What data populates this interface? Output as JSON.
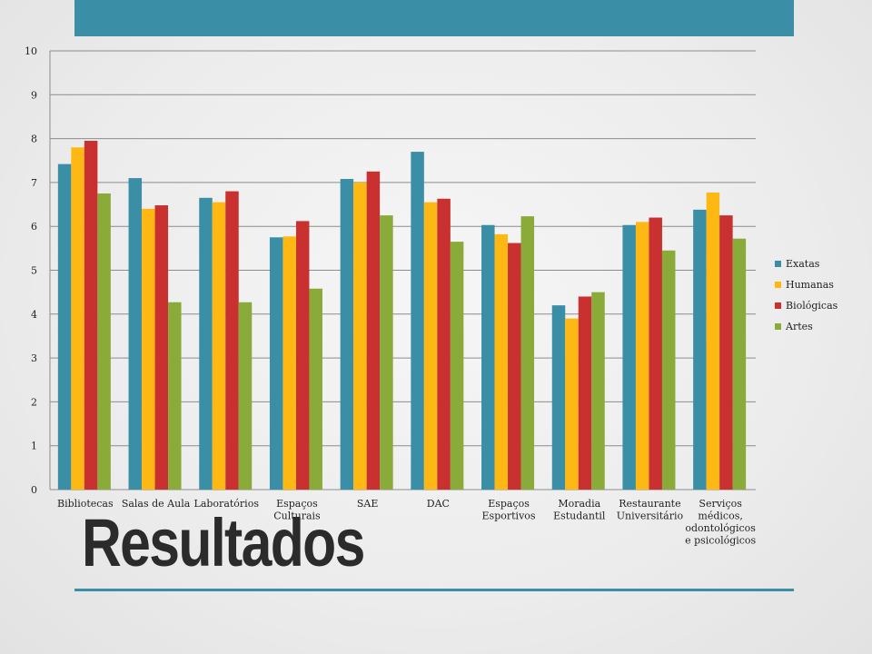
{
  "slide": {
    "title": "Resultados",
    "accent_color": "#3a8fa6"
  },
  "chart_data": {
    "type": "bar",
    "title": "",
    "xlabel": "",
    "ylabel": "",
    "ylim": [
      0,
      10
    ],
    "yticks": [
      "0",
      "1",
      "2",
      "3",
      "4",
      "5",
      "6",
      "7",
      "8",
      "9",
      "10"
    ],
    "grid": true,
    "legend_position": "right",
    "categories": [
      [
        "Bibliotecas"
      ],
      [
        "Salas de Aula"
      ],
      [
        "Laboratórios"
      ],
      [
        "Espaços",
        "Culturais"
      ],
      [
        "SAE"
      ],
      [
        "DAC"
      ],
      [
        "Espaços",
        "Esportivos"
      ],
      [
        "Moradia",
        "Estudantil"
      ],
      [
        "Restaurante",
        "Universitário"
      ],
      [
        "Serviços",
        "médicos,",
        "odontológicos",
        "e psicológicos"
      ]
    ],
    "series": [
      {
        "name": "Exatas",
        "color": "#3a8fa6",
        "values": [
          7.42,
          7.1,
          6.65,
          5.75,
          7.08,
          7.7,
          6.03,
          4.2,
          6.03,
          6.38
        ]
      },
      {
        "name": "Humanas",
        "color": "#fdb813",
        "values": [
          7.8,
          6.4,
          6.55,
          5.77,
          7.0,
          6.55,
          5.82,
          3.9,
          6.1,
          6.77
        ]
      },
      {
        "name": "Biológicas",
        "color": "#c8312f",
        "values": [
          7.95,
          6.48,
          6.8,
          6.12,
          7.25,
          6.63,
          5.62,
          4.4,
          6.2,
          6.25
        ]
      },
      {
        "name": "Artes",
        "color": "#8aaa3a",
        "values": [
          6.75,
          4.27,
          4.27,
          4.58,
          6.25,
          5.65,
          6.23,
          4.5,
          5.45,
          5.72
        ]
      }
    ]
  }
}
